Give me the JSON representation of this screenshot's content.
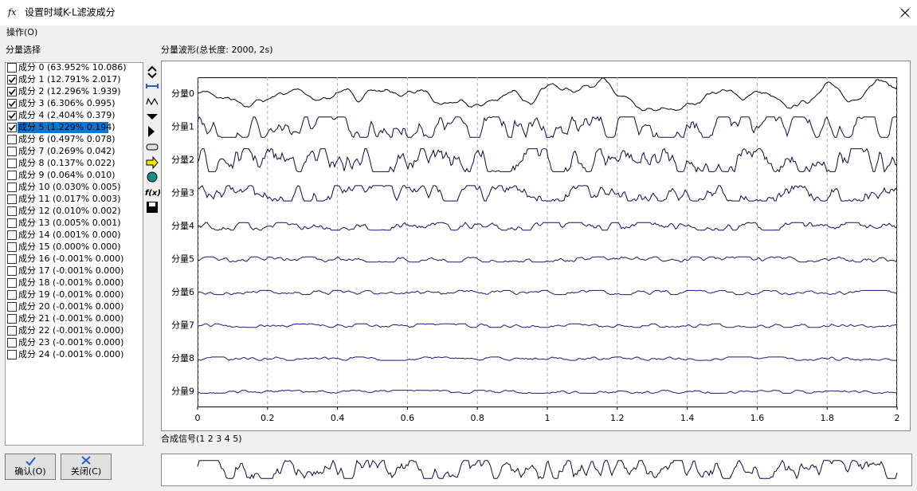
{
  "window": {
    "title": "设置时域K-L滤波成分",
    "menu": [
      "操作(O)"
    ]
  },
  "component_panel": {
    "title": "分量选择",
    "selected": 5,
    "items": [
      {
        "label": "成分 0 (63.952%  10.086)",
        "checked": false
      },
      {
        "label": "成分 1 (12.791%  2.017)",
        "checked": true
      },
      {
        "label": "成分 2 (12.296%  1.939)",
        "checked": true
      },
      {
        "label": "成分 3 (6.306%  0.995)",
        "checked": true
      },
      {
        "label": "成分 4 (2.404%  0.379)",
        "checked": true
      },
      {
        "label": "成分 5 (1.229%  0.194)",
        "checked": true
      },
      {
        "label": "成分 6 (0.497%  0.078)",
        "checked": false
      },
      {
        "label": "成分 7 (0.269%  0.042)",
        "checked": false
      },
      {
        "label": "成分 8 (0.137%  0.022)",
        "checked": false
      },
      {
        "label": "成分 9 (0.064%  0.010)",
        "checked": false
      },
      {
        "label": "成分 10 (0.030%  0.005)",
        "checked": false
      },
      {
        "label": "成分 11 (0.017%  0.003)",
        "checked": false
      },
      {
        "label": "成分 12 (0.010%  0.002)",
        "checked": false
      },
      {
        "label": "成分 13 (0.005%  0.001)",
        "checked": false
      },
      {
        "label": "成分 14 (0.001%  0.000)",
        "checked": false
      },
      {
        "label": "成分 15 (0.000%  0.000)",
        "checked": false
      },
      {
        "label": "成分 16 (-0.001%  0.000)",
        "checked": false
      },
      {
        "label": "成分 17 (-0.001%  0.000)",
        "checked": false
      },
      {
        "label": "成分 18 (-0.001%  0.000)",
        "checked": false
      },
      {
        "label": "成分 19 (-0.001%  0.000)",
        "checked": false
      },
      {
        "label": "成分 20 (-0.001%  0.000)",
        "checked": false
      },
      {
        "label": "成分 21 (-0.001%  0.000)",
        "checked": false
      },
      {
        "label": "成分 22 (-0.001%  0.000)",
        "checked": false
      },
      {
        "label": "成分 23 (-0.001%  0.000)",
        "checked": false
      },
      {
        "label": "成分 24 (-0.001%  0.000)",
        "checked": false
      }
    ]
  },
  "chart_data": {
    "type": "line",
    "title": "分量波形(总长度: 2000, 2s)",
    "channels": [
      {
        "name": "分量0",
        "color": "#000000"
      },
      {
        "name": "分量1",
        "color": "#0a0a40"
      },
      {
        "name": "分量2",
        "color": "#0a0a40"
      },
      {
        "name": "分量3",
        "color": "#0a0a50"
      },
      {
        "name": "分量4",
        "color": "#101060"
      },
      {
        "name": "分量5",
        "color": "#1a1a70"
      },
      {
        "name": "分量6",
        "color": "#1a1a80"
      },
      {
        "name": "分量7",
        "color": "#1a1a80"
      },
      {
        "name": "分量8",
        "color": "#1a1a80"
      },
      {
        "name": "分量9",
        "color": "#1a1a80"
      }
    ],
    "xlim": [
      0,
      2
    ],
    "xticks": [
      0,
      0.2,
      0.4,
      0.6,
      0.8,
      1,
      1.2,
      1.4,
      1.6,
      1.8,
      2
    ],
    "grid": true
  },
  "synthesis": {
    "title": "合成信号(1  2  3  4  5)"
  },
  "buttons": [
    "确认(O)",
    "关闭(C)"
  ]
}
